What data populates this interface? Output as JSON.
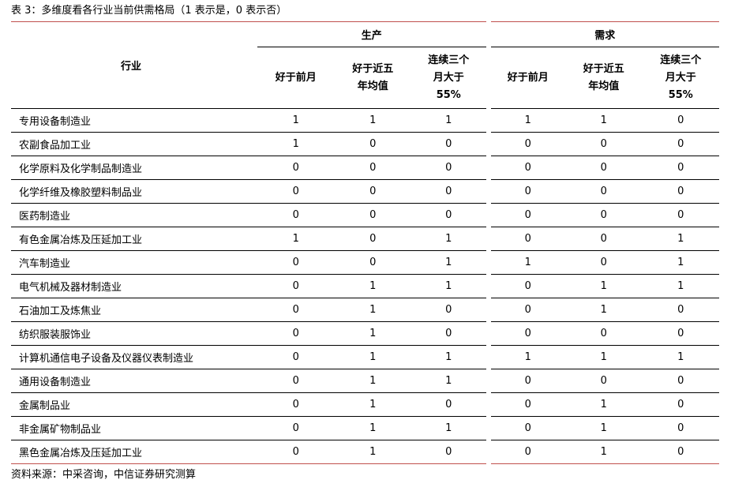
{
  "caption": "表 3：多维度看各行业当前供需格局（1 表示是，0 表示否）",
  "header": {
    "industry": "行业",
    "groups": [
      "生产",
      "需求"
    ],
    "subcolumns": [
      [
        "好于前月"
      ],
      [
        "好于近五",
        "年均值"
      ],
      [
        "连续三个",
        "月大于",
        "55%"
      ],
      [
        "好于前月"
      ],
      [
        "好于近五",
        "年均值"
      ],
      [
        "连续三个",
        "月大于",
        "55%"
      ]
    ]
  },
  "rows": [
    {
      "industry": "专用设备制造业",
      "values": [
        "1",
        "1",
        "1",
        "1",
        "1",
        "0"
      ]
    },
    {
      "industry": "农副食品加工业",
      "values": [
        "1",
        "0",
        "0",
        "0",
        "0",
        "0"
      ]
    },
    {
      "industry": "化学原料及化学制品制造业",
      "values": [
        "0",
        "0",
        "0",
        "0",
        "0",
        "0"
      ]
    },
    {
      "industry": "化学纤维及橡胶塑料制品业",
      "values": [
        "0",
        "0",
        "0",
        "0",
        "0",
        "0"
      ]
    },
    {
      "industry": "医药制造业",
      "values": [
        "0",
        "0",
        "0",
        "0",
        "0",
        "0"
      ]
    },
    {
      "industry": "有色金属冶炼及压延加工业",
      "values": [
        "1",
        "0",
        "1",
        "0",
        "0",
        "1"
      ]
    },
    {
      "industry": "汽车制造业",
      "values": [
        "0",
        "0",
        "1",
        "1",
        "0",
        "1"
      ]
    },
    {
      "industry": "电气机械及器材制造业",
      "values": [
        "0",
        "1",
        "1",
        "0",
        "1",
        "1"
      ]
    },
    {
      "industry": "石油加工及炼焦业",
      "values": [
        "0",
        "1",
        "0",
        "0",
        "1",
        "0"
      ]
    },
    {
      "industry": "纺织服装服饰业",
      "values": [
        "0",
        "1",
        "0",
        "0",
        "0",
        "0"
      ]
    },
    {
      "industry": "计算机通信电子设备及仪器仪表制造业",
      "values": [
        "0",
        "1",
        "1",
        "1",
        "1",
        "1"
      ]
    },
    {
      "industry": "通用设备制造业",
      "values": [
        "0",
        "1",
        "1",
        "0",
        "0",
        "0"
      ]
    },
    {
      "industry": "金属制品业",
      "values": [
        "0",
        "1",
        "0",
        "0",
        "1",
        "0"
      ]
    },
    {
      "industry": "非金属矿物制品业",
      "values": [
        "0",
        "1",
        "1",
        "0",
        "1",
        "0"
      ]
    },
    {
      "industry": "黑色金属冶炼及压延加工业",
      "values": [
        "0",
        "1",
        "0",
        "0",
        "1",
        "0"
      ]
    }
  ],
  "source": "资料来源：中采咨询，中信证券研究测算",
  "colors": {
    "accent_rule": "#c0504d",
    "text": "#000000"
  }
}
